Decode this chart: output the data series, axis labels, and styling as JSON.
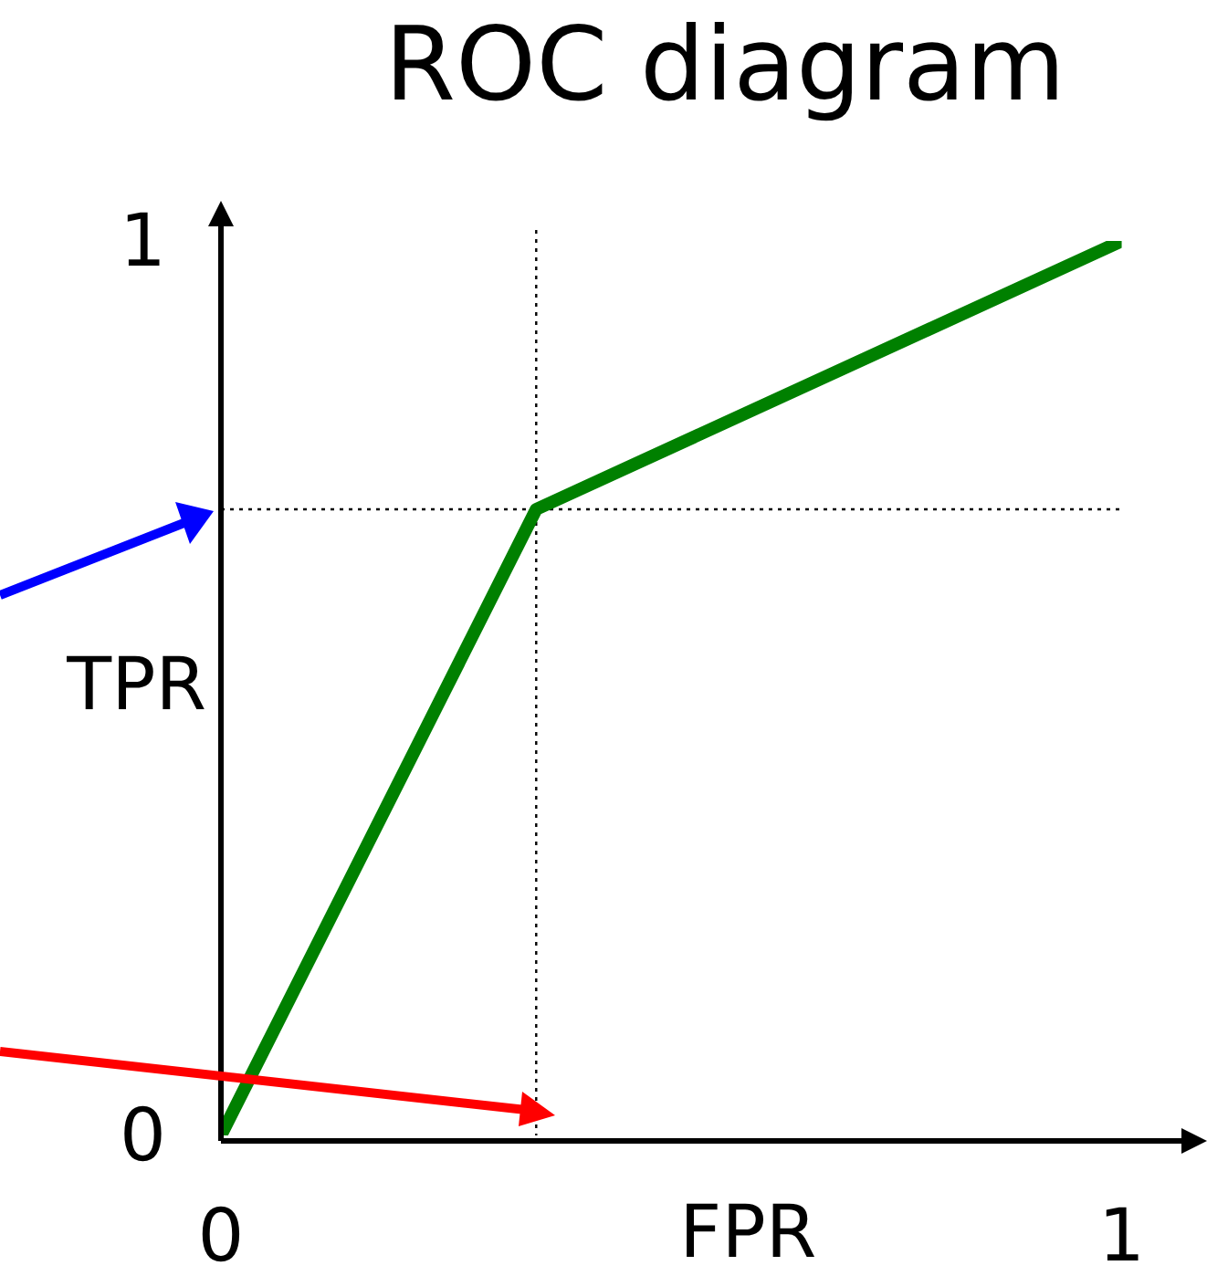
{
  "chart_data": {
    "type": "line",
    "title": "ROC diagram",
    "xlabel": "FPR",
    "ylabel": "TPR",
    "x": [
      0,
      0.35,
      1
    ],
    "series": [
      {
        "color": "#008000",
        "values": [
          0,
          0.7,
          1
        ]
      }
    ],
    "xlim": [
      0,
      1
    ],
    "ylim": [
      0,
      1
    ],
    "xticks": [
      0,
      1
    ],
    "yticks": [
      0,
      1
    ],
    "grid": false,
    "legend": false,
    "marker": "none",
    "line_style": "solid",
    "ref_lines": [
      {
        "axis": "x",
        "value": 0.35,
        "color": "#000000",
        "line_style": "dotted"
      },
      {
        "axis": "y",
        "value": 0.7,
        "color": "#000000",
        "line_style": "dotted"
      }
    ]
  }
}
